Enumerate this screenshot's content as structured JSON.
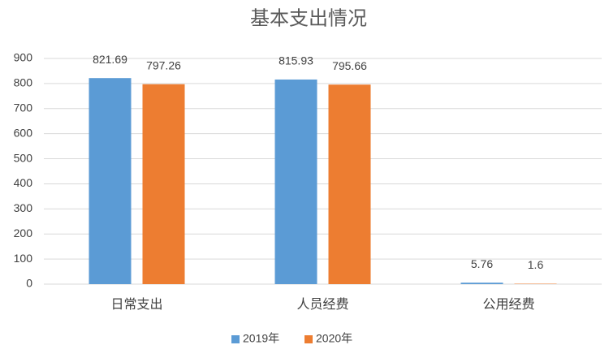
{
  "chart_data": {
    "type": "bar",
    "title": "基本支出情况",
    "categories": [
      "日常支出",
      "人员经费",
      "公用经费"
    ],
    "series": [
      {
        "name": "2019年",
        "color": "#5b9bd5",
        "values": [
          821.69,
          815.93,
          5.76
        ]
      },
      {
        "name": "2020年",
        "color": "#ed7d31",
        "values": [
          797.26,
          795.66,
          1.6
        ]
      }
    ],
    "ylim": [
      0,
      900
    ],
    "yticks": [
      0,
      100,
      200,
      300,
      400,
      500,
      600,
      700,
      800,
      900
    ],
    "grid": true,
    "legend": "bottom",
    "data_labels": true
  }
}
